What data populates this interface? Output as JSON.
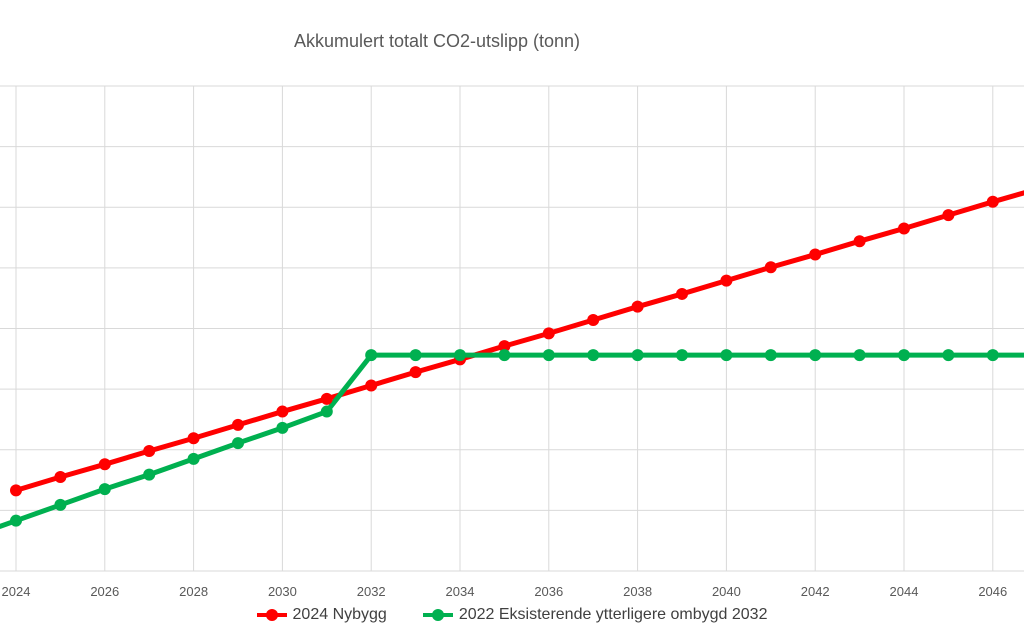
{
  "chart_data": {
    "type": "line",
    "title": "Akkumulert totalt CO2-utslipp (tonn)",
    "xlabel": "",
    "ylabel": "",
    "x": [
      2024,
      2025,
      2026,
      2027,
      2028,
      2029,
      2030,
      2031,
      2032,
      2033,
      2034,
      2035,
      2036,
      2037,
      2038,
      2039,
      2040,
      2041,
      2042,
      2043,
      2044,
      2045,
      2046,
      2047
    ],
    "x_tick_labels": [
      "2024",
      "2026",
      "2028",
      "2030",
      "2032",
      "2034",
      "2036",
      "2038",
      "2040",
      "2042",
      "2044",
      "2046"
    ],
    "ylim": [
      0,
      8
    ],
    "grid": true,
    "legend": "bottom",
    "series": [
      {
        "name": "2024 Nybygg",
        "color": "#ff0000",
        "values": [
          1.33,
          1.55,
          1.76,
          1.98,
          2.19,
          2.41,
          2.63,
          2.84,
          3.06,
          3.28,
          3.49,
          3.71,
          3.92,
          4.14,
          4.36,
          4.57,
          4.79,
          5.01,
          5.22,
          5.44,
          5.65,
          5.87,
          6.09,
          6.3
        ]
      },
      {
        "name": "2022 Eksisterende ytterligere ombygd 2032",
        "color": "#00b050",
        "values": [
          0.83,
          1.09,
          1.35,
          1.59,
          1.85,
          2.11,
          2.36,
          2.63,
          3.56,
          3.56,
          3.56,
          3.56,
          3.56,
          3.56,
          3.56,
          3.56,
          3.56,
          3.56,
          3.56,
          3.56,
          3.56,
          3.56,
          3.56,
          3.56
        ]
      }
    ]
  }
}
